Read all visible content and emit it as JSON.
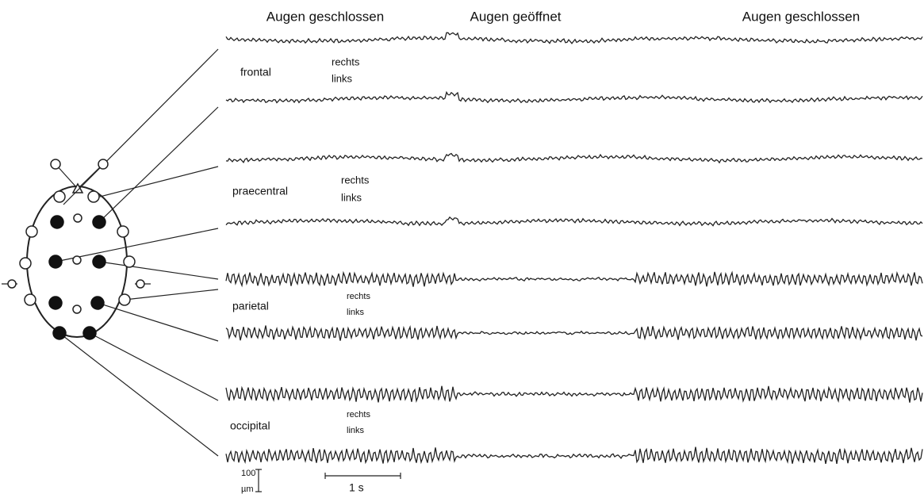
{
  "header": {
    "phases": [
      "Augen geschlossen",
      "Augen geöffnet",
      "Augen geschlossen"
    ]
  },
  "regions": [
    {
      "name": "frontal",
      "right": "rechts",
      "left": "links"
    },
    {
      "name": "praecentral",
      "right": "rechts",
      "left": "links"
    },
    {
      "name": "parietal",
      "right": "rechts",
      "left": "links"
    },
    {
      "name": "occipital",
      "right": "rechts",
      "left": "links"
    }
  ],
  "scale": {
    "amplitude": "100",
    "unit": "µm",
    "time": "1 s"
  }
}
